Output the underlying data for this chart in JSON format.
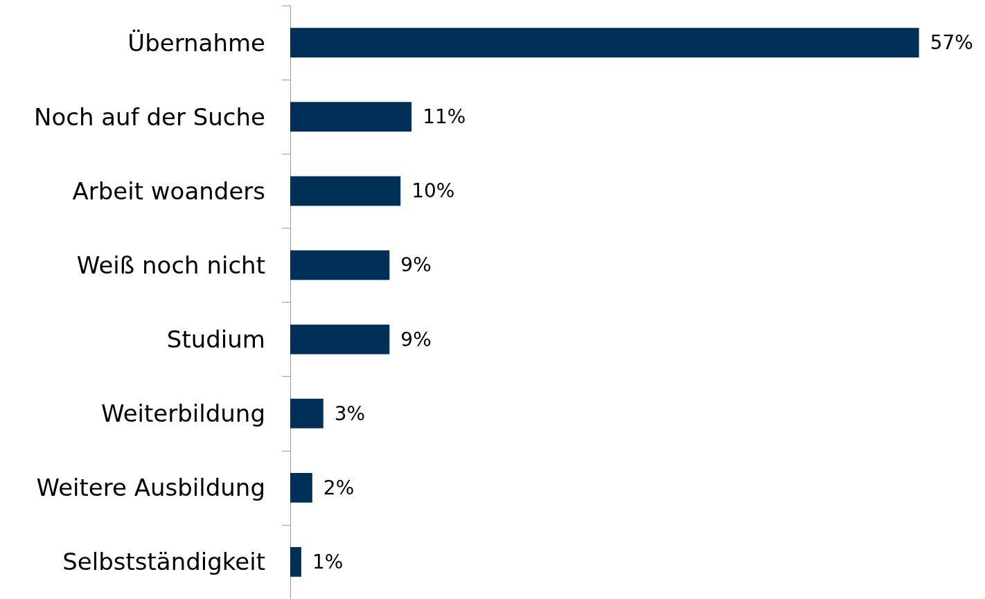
{
  "chart_data": {
    "type": "bar",
    "orientation": "horizontal",
    "categories": [
      "Übernahme",
      "Noch auf der Suche",
      "Arbeit woanders",
      "Weiß noch nicht",
      "Studium",
      "Weiterbildung",
      "Weitere Ausbildung",
      "Selbstständigkeit"
    ],
    "values": [
      57,
      11,
      10,
      9,
      9,
      3,
      2,
      1
    ],
    "value_labels": [
      "57%",
      "11%",
      "10%",
      "9%",
      "9%",
      "3%",
      "2%",
      "1%"
    ],
    "color": "#003057"
  }
}
